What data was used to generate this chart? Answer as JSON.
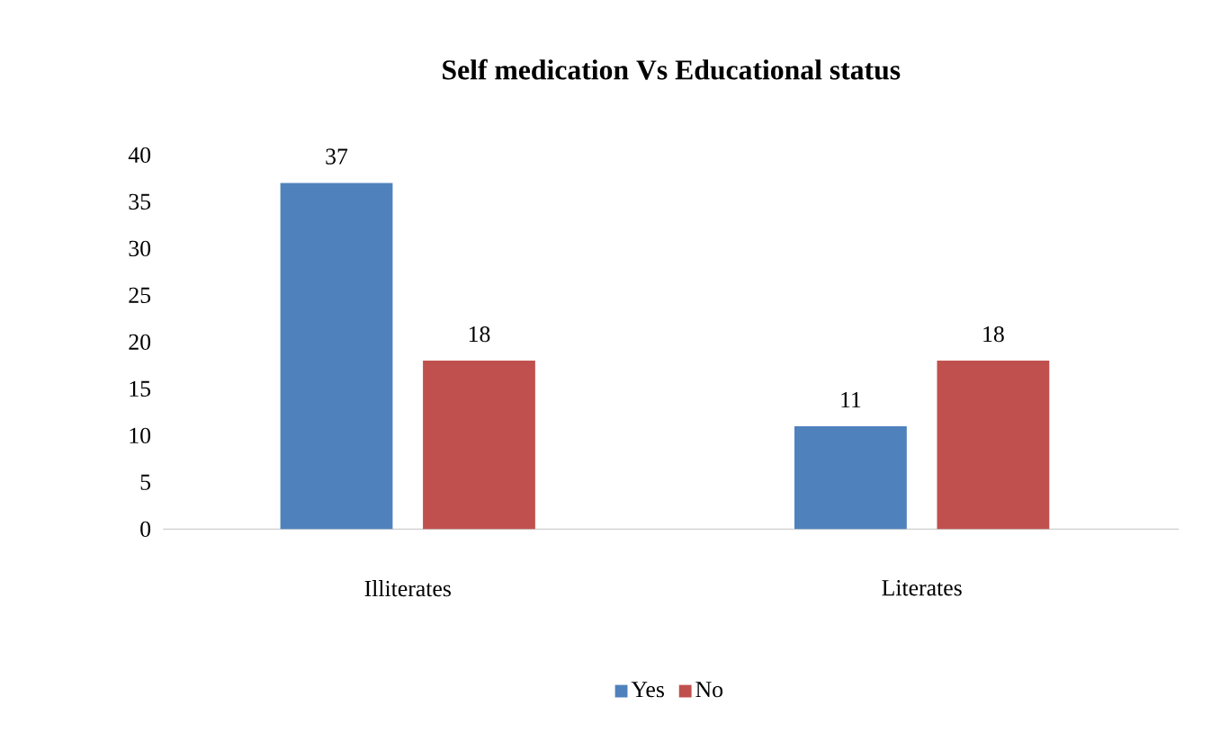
{
  "chart_data": {
    "type": "bar",
    "title": "Self medication Vs Educational status",
    "categories": [
      "Illiterates",
      "Literates"
    ],
    "series": [
      {
        "name": "Yes",
        "color": "#4f81bd",
        "values": [
          37,
          11
        ]
      },
      {
        "name": "No",
        "color": "#c0504d",
        "values": [
          18,
          18
        ]
      }
    ],
    "ylim": [
      0,
      40
    ],
    "yticks": [
      0,
      5,
      10,
      15,
      20,
      25,
      30,
      35,
      40
    ],
    "grid": false,
    "legend": "bottom",
    "data_labels": true
  }
}
